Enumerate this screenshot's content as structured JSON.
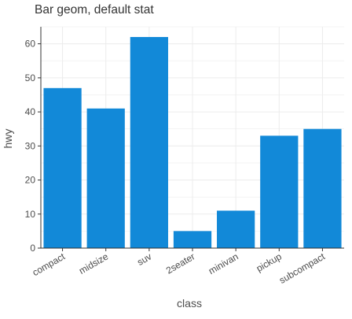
{
  "chart_data": {
    "type": "bar",
    "title": "Bar geom, default stat",
    "xlabel": "class",
    "ylabel": "hwy",
    "categories": [
      "compact",
      "midsize",
      "suv",
      "2seater",
      "minivan",
      "pickup",
      "subcompact"
    ],
    "values": [
      47,
      41,
      62,
      5,
      11,
      33,
      35
    ],
    "ylim": [
      0,
      65
    ],
    "yticks": [
      0,
      10,
      20,
      30,
      40,
      50,
      60
    ],
    "grid": true,
    "legend": "none",
    "colors": {
      "bar": "#1289d8",
      "grid": "#ececec",
      "axis": "#333333",
      "text": "#4d4d4d"
    }
  }
}
